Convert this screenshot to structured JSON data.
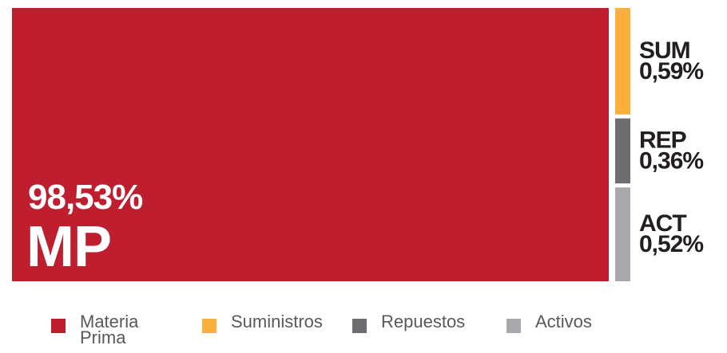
{
  "chart_data": {
    "type": "treemap",
    "categories": [
      "MP",
      "SUM",
      "REP",
      "ACT"
    ],
    "legend_labels": [
      "Materia Prima",
      "Suministros",
      "Repuestos",
      "Activos"
    ],
    "values": [
      98.53,
      0.59,
      0.36,
      0.52
    ],
    "value_labels": [
      "98,53%",
      "0,59%",
      "0,36%",
      "0,52%"
    ],
    "colors": [
      "#be1e2d",
      "#fbb03b",
      "#6d6e71",
      "#a7a9ac"
    ]
  }
}
